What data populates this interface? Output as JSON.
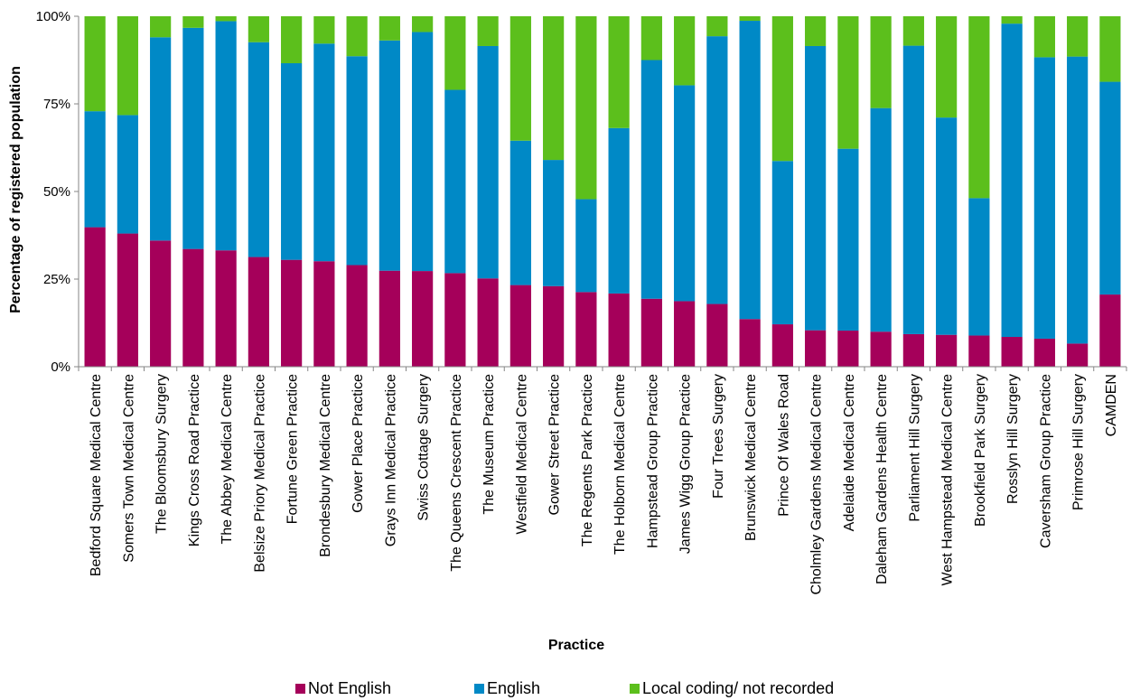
{
  "chart_data": {
    "type": "bar",
    "stacked": true,
    "xlabel": "Practice",
    "ylabel": "Percentage of registered population",
    "ylim": [
      0,
      100
    ],
    "yticks": [
      "0%",
      "25%",
      "50%",
      "75%",
      "100%"
    ],
    "grid": false,
    "legend_position": "bottom",
    "categories": [
      "Bedford Square Medical Centre",
      "Somers Town Medical Centre",
      "The Bloomsbury Surgery",
      "Kings Cross Road Practice",
      "The Abbey Medical Centre",
      "Belsize Priory Medical Practice",
      "Fortune Green Practice",
      "Brondesbury Medical Centre",
      "Gower Place Practice",
      "Grays Inn Medical Practice",
      "Swiss Cottage Surgery",
      "The Queens Crescent Practice",
      "The Museum Practice",
      "Westfield Medical Centre",
      "Gower Street Practice",
      "The Regents Park Practice",
      "The Holborn Medical Centre",
      "Hampstead Group Practice",
      "James Wigg Group Practice",
      "Four Trees Surgery",
      "Brunswick Medical Centre",
      "Prince Of Wales Road",
      "Cholmley Gardens Medical Centre",
      "Adelaide Medical Centre",
      "Daleham Gardens Health Centre",
      "Parliament Hill Surgery",
      "West Hampstead Medical Centre",
      "Brookfield Park Surgery",
      "Rosslyn Hill Surgery",
      "Caversham Group Practice",
      "Primrose Hill Surgery",
      "CAMDEN"
    ],
    "series": [
      {
        "name": "Not English",
        "color": "#a5005a",
        "values": [
          39.8,
          38.0,
          36.0,
          33.6,
          33.2,
          31.3,
          30.5,
          30.1,
          29.0,
          27.4,
          27.3,
          26.7,
          25.2,
          23.3,
          23.0,
          21.3,
          20.9,
          19.4,
          18.7,
          17.9,
          13.6,
          12.1,
          10.4,
          10.3,
          10.0,
          9.3,
          9.1,
          8.9,
          8.5,
          8.0,
          6.6,
          20.6
        ]
      },
      {
        "name": "English",
        "color": "#0089c6",
        "values": [
          33.1,
          33.8,
          58.0,
          63.1,
          65.4,
          61.3,
          56.1,
          62.1,
          59.6,
          65.7,
          68.2,
          52.3,
          66.3,
          41.2,
          36.0,
          26.5,
          47.2,
          68.1,
          61.6,
          76.4,
          85.1,
          46.6,
          81.1,
          51.9,
          63.8,
          82.3,
          62.0,
          39.2,
          89.4,
          80.3,
          81.9,
          60.7
        ]
      },
      {
        "name": "Local coding/ not recorded",
        "color": "#5cbf1c",
        "values": [
          27.1,
          28.2,
          6.0,
          3.3,
          1.4,
          7.4,
          13.4,
          7.8,
          11.4,
          6.9,
          4.5,
          21.0,
          8.5,
          35.5,
          41.0,
          52.2,
          31.9,
          12.5,
          19.7,
          5.7,
          1.3,
          41.3,
          8.5,
          37.8,
          26.2,
          8.4,
          28.9,
          51.9,
          2.1,
          11.7,
          11.5,
          18.7
        ]
      }
    ]
  }
}
